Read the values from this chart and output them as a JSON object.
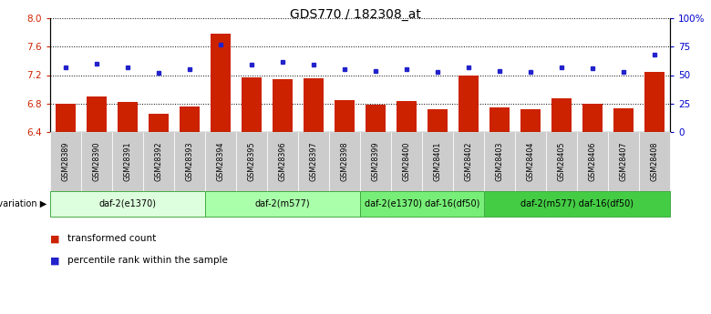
{
  "title": "GDS770 / 182308_at",
  "samples": [
    "GSM28389",
    "GSM28390",
    "GSM28391",
    "GSM28392",
    "GSM28393",
    "GSM28394",
    "GSM28395",
    "GSM28396",
    "GSM28397",
    "GSM28398",
    "GSM28399",
    "GSM28400",
    "GSM28401",
    "GSM28402",
    "GSM28403",
    "GSM28404",
    "GSM28405",
    "GSM28406",
    "GSM28407",
    "GSM28408"
  ],
  "bar_values": [
    6.8,
    6.9,
    6.82,
    6.65,
    6.76,
    7.78,
    7.17,
    7.14,
    7.16,
    6.85,
    6.79,
    6.83,
    6.72,
    7.19,
    6.75,
    6.72,
    6.87,
    6.8,
    6.73,
    7.24
  ],
  "dot_values": [
    57,
    60,
    57,
    52,
    55,
    77,
    59,
    62,
    59,
    55,
    54,
    55,
    53,
    57,
    54,
    53,
    57,
    56,
    53,
    68
  ],
  "ylim_left": [
    6.4,
    8.0
  ],
  "ylim_right": [
    0,
    100
  ],
  "yticks_left": [
    6.4,
    6.8,
    7.2,
    7.6,
    8.0
  ],
  "yticks_right": [
    0,
    25,
    50,
    75,
    100
  ],
  "ytick_labels_right": [
    "0",
    "25",
    "50",
    "75",
    "100%"
  ],
  "bar_color": "#cc2200",
  "dot_color": "#2222cc",
  "groups": [
    {
      "label": "daf-2(e1370)",
      "start": 0,
      "end": 5,
      "color": "#ddffdd"
    },
    {
      "label": "daf-2(m577)",
      "start": 5,
      "end": 10,
      "color": "#aaffaa"
    },
    {
      "label": "daf-2(e1370) daf-16(df50)",
      "start": 10,
      "end": 14,
      "color": "#77ee77"
    },
    {
      "label": "daf-2(m577) daf-16(df50)",
      "start": 14,
      "end": 20,
      "color": "#44cc44"
    }
  ],
  "legend_bar_label": "transformed count",
  "legend_dot_label": "percentile rank within the sample",
  "background_color": "#ffffff"
}
